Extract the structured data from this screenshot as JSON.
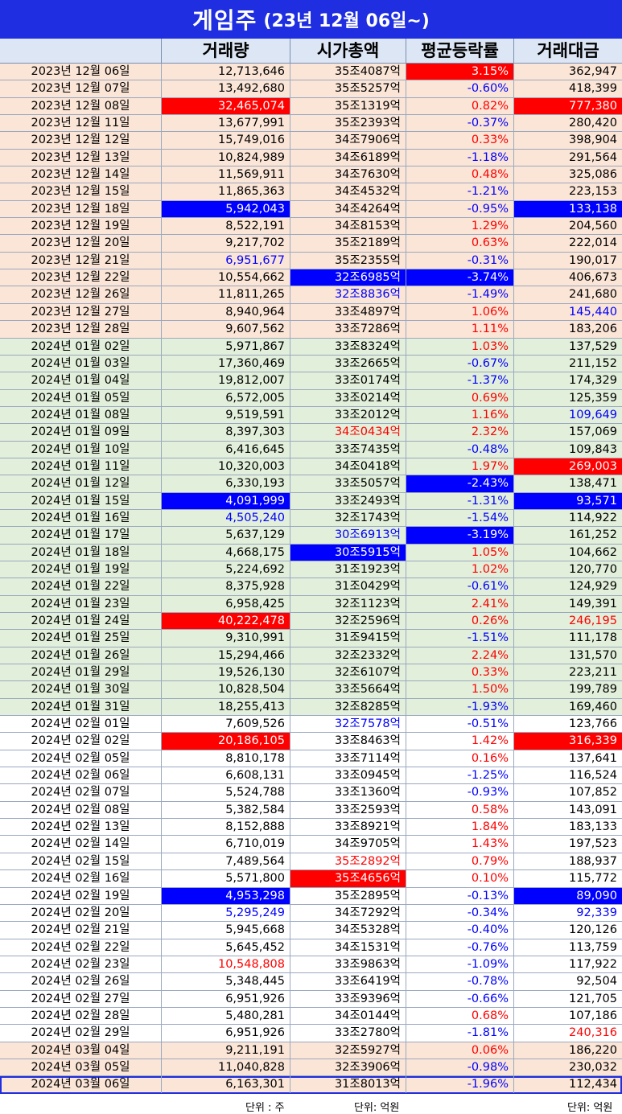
{
  "title": {
    "main": "게임주",
    "sub": "(23년 12월 06일~)"
  },
  "columns": [
    "거래량",
    "시가총액",
    "평균등락률",
    "거래대금"
  ],
  "footer": {
    "unit_volume": "단위 : 주",
    "unit_cap": "단위: 억원",
    "unit_amount": "단위: 억원"
  },
  "colors": {
    "title_bg": "#1e2ee0",
    "header_bg": "#dce6f5",
    "band_pink": "#fbe5d6",
    "band_green": "#e2efda",
    "band_white": "#ffffff",
    "hi_red": "#ff0000",
    "hi_blue": "#0000ff",
    "text_red": "#ff0000",
    "text_blue": "#0000ff"
  },
  "rows": [
    {
      "date": "2023년 12월 06일",
      "band": "pink",
      "vol": "12,713,646",
      "cap": "35조4087억",
      "chg": "3.15%",
      "amt": "362,947",
      "chg_hl": "red"
    },
    {
      "date": "2023년 12월 07일",
      "band": "pink",
      "vol": "13,492,680",
      "cap": "35조5257억",
      "chg": "-0.60%",
      "amt": "418,399"
    },
    {
      "date": "2023년 12월 08일",
      "band": "pink",
      "vol": "32,465,074",
      "cap": "35조1319억",
      "chg": "0.82%",
      "amt": "777,380",
      "vol_hl": "red",
      "amt_hl": "red"
    },
    {
      "date": "2023년 12월 11일",
      "band": "pink",
      "vol": "13,677,991",
      "cap": "35조2393억",
      "chg": "-0.37%",
      "amt": "280,420"
    },
    {
      "date": "2023년 12월 12일",
      "band": "pink",
      "vol": "15,749,016",
      "cap": "34조7906억",
      "chg": "0.33%",
      "amt": "398,904"
    },
    {
      "date": "2023년 12월 13일",
      "band": "pink",
      "vol": "10,824,989",
      "cap": "34조6189억",
      "chg": "-1.18%",
      "amt": "291,564"
    },
    {
      "date": "2023년 12월 14일",
      "band": "pink",
      "vol": "11,569,911",
      "cap": "34조7630억",
      "chg": "0.48%",
      "amt": "325,086"
    },
    {
      "date": "2023년 12월 15일",
      "band": "pink",
      "vol": "11,865,363",
      "cap": "34조4532억",
      "chg": "-1.21%",
      "amt": "223,153"
    },
    {
      "date": "2023년 12월 18일",
      "band": "pink",
      "vol": "5,942,043",
      "cap": "34조4264억",
      "chg": "-0.95%",
      "amt": "133,138",
      "vol_hl": "blue",
      "amt_hl": "blue"
    },
    {
      "date": "2023년 12월 19일",
      "band": "pink",
      "vol": "8,522,191",
      "cap": "34조8153억",
      "chg": "1.29%",
      "amt": "204,560"
    },
    {
      "date": "2023년 12월 20일",
      "band": "pink",
      "vol": "9,217,702",
      "cap": "35조2189억",
      "chg": "0.63%",
      "amt": "222,014"
    },
    {
      "date": "2023년 12월 21일",
      "band": "pink",
      "vol": "6,951,677",
      "cap": "35조2355억",
      "chg": "-0.31%",
      "amt": "190,017",
      "vol_tc": "blue"
    },
    {
      "date": "2023년 12월 22일",
      "band": "pink",
      "vol": "10,554,662",
      "cap": "32조6985억",
      "chg": "-3.74%",
      "amt": "406,673",
      "cap_hl": "blue",
      "chg_hl": "blue"
    },
    {
      "date": "2023년 12월 26일",
      "band": "pink",
      "vol": "11,811,265",
      "cap": "32조8836억",
      "chg": "-1.49%",
      "amt": "241,680",
      "cap_tc": "blue"
    },
    {
      "date": "2023년 12월 27일",
      "band": "pink",
      "vol": "8,940,964",
      "cap": "33조4897억",
      "chg": "1.06%",
      "amt": "145,440",
      "amt_tc": "blue"
    },
    {
      "date": "2023년 12월 28일",
      "band": "pink",
      "vol": "9,607,562",
      "cap": "33조7286억",
      "chg": "1.11%",
      "amt": "183,206"
    },
    {
      "date": "2024년 01월 02일",
      "band": "green",
      "vol": "5,971,867",
      "cap": "33조8324억",
      "chg": "1.03%",
      "amt": "137,529"
    },
    {
      "date": "2024년 01월 03일",
      "band": "green",
      "vol": "17,360,469",
      "cap": "33조2665억",
      "chg": "-0.67%",
      "amt": "211,152"
    },
    {
      "date": "2024년 01월 04일",
      "band": "green",
      "vol": "19,812,007",
      "cap": "33조0174억",
      "chg": "-1.37%",
      "amt": "174,329"
    },
    {
      "date": "2024년 01월 05일",
      "band": "green",
      "vol": "6,572,005",
      "cap": "33조0214억",
      "chg": "0.69%",
      "amt": "125,359"
    },
    {
      "date": "2024년 01월 08일",
      "band": "green",
      "vol": "9,519,591",
      "cap": "33조2012억",
      "chg": "1.16%",
      "amt": "109,649",
      "amt_tc": "blue"
    },
    {
      "date": "2024년 01월 09일",
      "band": "green",
      "vol": "8,397,303",
      "cap": "34조0434억",
      "chg": "2.32%",
      "amt": "157,069",
      "cap_tc": "red"
    },
    {
      "date": "2024년 01월 10일",
      "band": "green",
      "vol": "6,416,645",
      "cap": "33조7435억",
      "chg": "-0.48%",
      "amt": "109,843"
    },
    {
      "date": "2024년 01월 11일",
      "band": "green",
      "vol": "10,320,003",
      "cap": "34조0418억",
      "chg": "1.97%",
      "amt": "269,003",
      "amt_hl": "red"
    },
    {
      "date": "2024년 01월 12일",
      "band": "green",
      "vol": "6,330,193",
      "cap": "33조5057억",
      "chg": "-2.43%",
      "amt": "138,471",
      "chg_hl": "blue"
    },
    {
      "date": "2024년 01월 15일",
      "band": "green",
      "vol": "4,091,999",
      "cap": "33조2493억",
      "chg": "-1.31%",
      "amt": "93,571",
      "vol_hl": "blue",
      "amt_hl": "blue"
    },
    {
      "date": "2024년 01월 16일",
      "band": "green",
      "vol": "4,505,240",
      "cap": "32조1743억",
      "chg": "-1.54%",
      "amt": "114,922",
      "vol_tc": "blue"
    },
    {
      "date": "2024년 01월 17일",
      "band": "green",
      "vol": "5,637,129",
      "cap": "30조6913억",
      "chg": "-3.19%",
      "amt": "161,252",
      "cap_tc": "blue",
      "chg_hl": "blue"
    },
    {
      "date": "2024년 01월 18일",
      "band": "green",
      "vol": "4,668,175",
      "cap": "30조5915억",
      "chg": "1.05%",
      "amt": "104,662",
      "cap_hl": "blue"
    },
    {
      "date": "2024년 01월 19일",
      "band": "green",
      "vol": "5,224,692",
      "cap": "31조1923억",
      "chg": "1.02%",
      "amt": "120,770"
    },
    {
      "date": "2024년 01월 22일",
      "band": "green",
      "vol": "8,375,928",
      "cap": "31조0429억",
      "chg": "-0.61%",
      "amt": "124,929"
    },
    {
      "date": "2024년 01월 23일",
      "band": "green",
      "vol": "6,958,425",
      "cap": "32조1123억",
      "chg": "2.41%",
      "amt": "149,391"
    },
    {
      "date": "2024년 01월 24일",
      "band": "green",
      "vol": "40,222,478",
      "cap": "32조2596억",
      "chg": "0.26%",
      "amt": "246,195",
      "vol_hl": "red",
      "amt_tc": "red"
    },
    {
      "date": "2024년 01월 25일",
      "band": "green",
      "vol": "9,310,991",
      "cap": "31조9415억",
      "chg": "-1.51%",
      "amt": "111,178"
    },
    {
      "date": "2024년 01월 26일",
      "band": "green",
      "vol": "15,294,466",
      "cap": "32조2332억",
      "chg": "2.24%",
      "amt": "131,570"
    },
    {
      "date": "2024년 01월 29일",
      "band": "green",
      "vol": "19,526,130",
      "cap": "32조6107억",
      "chg": "0.33%",
      "amt": "223,211"
    },
    {
      "date": "2024년 01월 30일",
      "band": "green",
      "vol": "10,828,504",
      "cap": "33조5664억",
      "chg": "1.50%",
      "amt": "199,789"
    },
    {
      "date": "2024년 01월 31일",
      "band": "green",
      "vol": "18,255,413",
      "cap": "32조8285억",
      "chg": "-1.93%",
      "amt": "169,460"
    },
    {
      "date": "2024년 02월 01일",
      "band": "white",
      "vol": "7,609,526",
      "cap": "32조7578억",
      "chg": "-0.51%",
      "amt": "123,766",
      "cap_tc": "blue"
    },
    {
      "date": "2024년 02월 02일",
      "band": "white",
      "vol": "20,186,105",
      "cap": "33조8463억",
      "chg": "1.42%",
      "amt": "316,339",
      "vol_hl": "red",
      "amt_hl": "red"
    },
    {
      "date": "2024년 02월 05일",
      "band": "white",
      "vol": "8,810,178",
      "cap": "33조7114억",
      "chg": "0.16%",
      "amt": "137,641"
    },
    {
      "date": "2024년 02월 06일",
      "band": "white",
      "vol": "6,608,131",
      "cap": "33조0945억",
      "chg": "-1.25%",
      "amt": "116,524"
    },
    {
      "date": "2024년 02월 07일",
      "band": "white",
      "vol": "5,524,788",
      "cap": "33조1360억",
      "chg": "-0.93%",
      "amt": "107,852"
    },
    {
      "date": "2024년 02월 08일",
      "band": "white",
      "vol": "5,382,584",
      "cap": "33조2593억",
      "chg": "0.58%",
      "amt": "143,091"
    },
    {
      "date": "2024년 02월 13일",
      "band": "white",
      "vol": "8,152,888",
      "cap": "33조8921억",
      "chg": "1.84%",
      "amt": "183,133"
    },
    {
      "date": "2024년 02월 14일",
      "band": "white",
      "vol": "6,710,019",
      "cap": "34조9705억",
      "chg": "1.43%",
      "amt": "197,523"
    },
    {
      "date": "2024년 02월 15일",
      "band": "white",
      "vol": "7,489,564",
      "cap": "35조2892억",
      "chg": "0.79%",
      "amt": "188,937",
      "cap_tc": "red"
    },
    {
      "date": "2024년 02월 16일",
      "band": "white",
      "vol": "5,571,800",
      "cap": "35조4656억",
      "chg": "0.10%",
      "amt": "115,772",
      "cap_hl": "red"
    },
    {
      "date": "2024년 02월 19일",
      "band": "white",
      "vol": "4,953,298",
      "cap": "35조2895억",
      "chg": "-0.13%",
      "amt": "89,090",
      "vol_hl": "blue",
      "amt_hl": "blue"
    },
    {
      "date": "2024년 02월 20일",
      "band": "white",
      "vol": "5,295,249",
      "cap": "34조7292억",
      "chg": "-0.34%",
      "amt": "92,339",
      "vol_tc": "blue",
      "amt_tc": "blue"
    },
    {
      "date": "2024년 02월 21일",
      "band": "white",
      "vol": "5,945,668",
      "cap": "34조5328억",
      "chg": "-0.40%",
      "amt": "120,126"
    },
    {
      "date": "2024년 02월 22일",
      "band": "white",
      "vol": "5,645,452",
      "cap": "34조1531억",
      "chg": "-0.76%",
      "amt": "113,759"
    },
    {
      "date": "2024년 02월 23일",
      "band": "white",
      "vol": "10,548,808",
      "cap": "33조9863억",
      "chg": "-1.09%",
      "amt": "117,922",
      "vol_tc": "red"
    },
    {
      "date": "2024년 02월 26일",
      "band": "white",
      "vol": "5,348,445",
      "cap": "33조6419억",
      "chg": "-0.78%",
      "amt": "92,504"
    },
    {
      "date": "2024년 02월 27일",
      "band": "white",
      "vol": "6,951,926",
      "cap": "33조9396억",
      "chg": "-0.66%",
      "amt": "121,705"
    },
    {
      "date": "2024년 02월 28일",
      "band": "white",
      "vol": "5,480,281",
      "cap": "34조0144억",
      "chg": "0.68%",
      "amt": "107,186"
    },
    {
      "date": "2024년 02월 29일",
      "band": "white",
      "vol": "6,951,926",
      "cap": "33조2780억",
      "chg": "-1.81%",
      "amt": "240,316",
      "amt_tc": "red"
    },
    {
      "date": "2024년 03월 04일",
      "band": "pink",
      "vol": "9,211,191",
      "cap": "32조5927억",
      "chg": "0.06%",
      "amt": "186,220"
    },
    {
      "date": "2024년 03월 05일",
      "band": "pink",
      "vol": "11,040,828",
      "cap": "32조3906억",
      "chg": "-0.98%",
      "amt": "230,032"
    },
    {
      "date": "2024년 03월 06일",
      "band": "pink",
      "vol": "6,163,301",
      "cap": "31조8013억",
      "chg": "-1.96%",
      "amt": "112,434",
      "frame": true
    }
  ]
}
